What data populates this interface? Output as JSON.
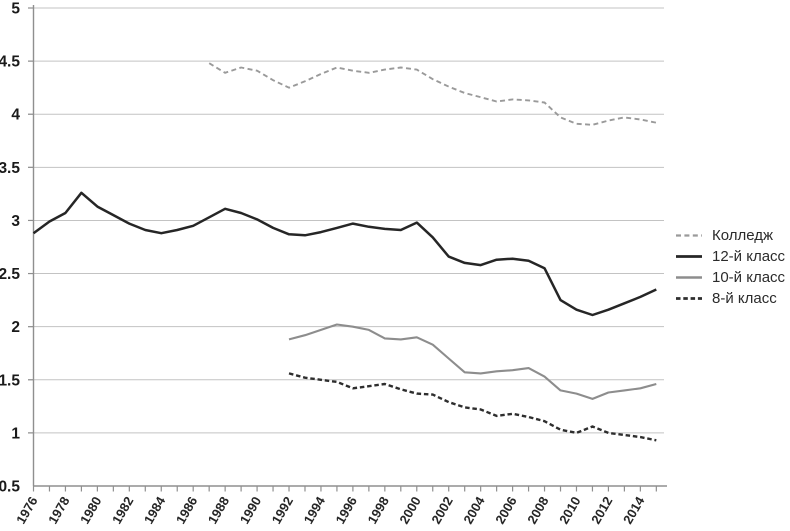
{
  "figure": {
    "background_color": "#ffffff",
    "gridline_color": "#c3c3c3",
    "axis_color": "#8f8f8f",
    "tick_label_color": "#1a1a1a"
  },
  "chart_data": {
    "type": "line",
    "title": "",
    "xlabel": "",
    "ylabel": "",
    "grid": true,
    "legend_position": "right",
    "y_axis": {
      "min": 0.5,
      "max": 5,
      "step": 0.5,
      "tick_labels": [
        "5",
        "4.5",
        "4",
        "3.5",
        "3",
        "2.5",
        "2",
        "1.5",
        "1",
        "0.5"
      ]
    },
    "x_axis": {
      "min": 1976,
      "max": 2015,
      "tick_every_years": 1,
      "label_every_years": 2,
      "labels": [
        "1976",
        "1978",
        "1980",
        "1982",
        "1984",
        "1986",
        "1988",
        "1990",
        "1992",
        "1994",
        "1996",
        "1998",
        "2000",
        "2002",
        "2004",
        "2006",
        "2008",
        "2010",
        "2012",
        "2014"
      ]
    },
    "series": [
      {
        "name": "Колледж",
        "style": "dashed",
        "dash": "5 3.4",
        "color": "#9a9a9a",
        "width": 1.9,
        "start_year": 1987,
        "values": [
          4.48,
          4.39,
          4.44,
          4.41,
          4.32,
          4.25,
          4.31,
          4.38,
          4.44,
          4.41,
          4.39,
          4.42,
          4.44,
          4.42,
          4.33,
          4.26,
          4.2,
          4.16,
          4.12,
          4.14,
          4.13,
          4.11,
          3.97,
          3.91,
          3.9,
          3.94,
          3.97,
          3.95,
          3.92
        ]
      },
      {
        "name": "12-й класс",
        "style": "solid",
        "dash": null,
        "color": "#262626",
        "width": 2.5,
        "start_year": 1976,
        "values": [
          2.88,
          2.99,
          3.07,
          3.26,
          3.13,
          3.05,
          2.97,
          2.91,
          2.88,
          2.91,
          2.95,
          3.03,
          3.11,
          3.07,
          3.01,
          2.93,
          2.87,
          2.86,
          2.89,
          2.93,
          2.97,
          2.94,
          2.92,
          2.91,
          2.98,
          2.84,
          2.66,
          2.6,
          2.58,
          2.63,
          2.64,
          2.62,
          2.55,
          2.25,
          2.16,
          2.11,
          2.16,
          2.22,
          2.28,
          2.35
        ]
      },
      {
        "name": "10-й класс",
        "style": "solid",
        "dash": null,
        "color": "#8d8d8d",
        "width": 2.1,
        "start_year": 1992,
        "values": [
          1.88,
          1.92,
          1.97,
          2.02,
          2.0,
          1.97,
          1.89,
          1.88,
          1.9,
          1.83,
          1.7,
          1.57,
          1.56,
          1.58,
          1.59,
          1.61,
          1.53,
          1.4,
          1.37,
          1.32,
          1.38,
          1.4,
          1.42,
          1.46
        ]
      },
      {
        "name": "8-й класс",
        "style": "dashed",
        "dash": "4.5 2.8",
        "color": "#2e2e2e",
        "width": 2.4,
        "start_year": 1992,
        "values": [
          1.56,
          1.52,
          1.5,
          1.48,
          1.42,
          1.44,
          1.46,
          1.41,
          1.37,
          1.36,
          1.29,
          1.24,
          1.22,
          1.16,
          1.18,
          1.15,
          1.11,
          1.03,
          1.0,
          1.06,
          1.0,
          0.98,
          0.96,
          0.93
        ]
      }
    ]
  }
}
